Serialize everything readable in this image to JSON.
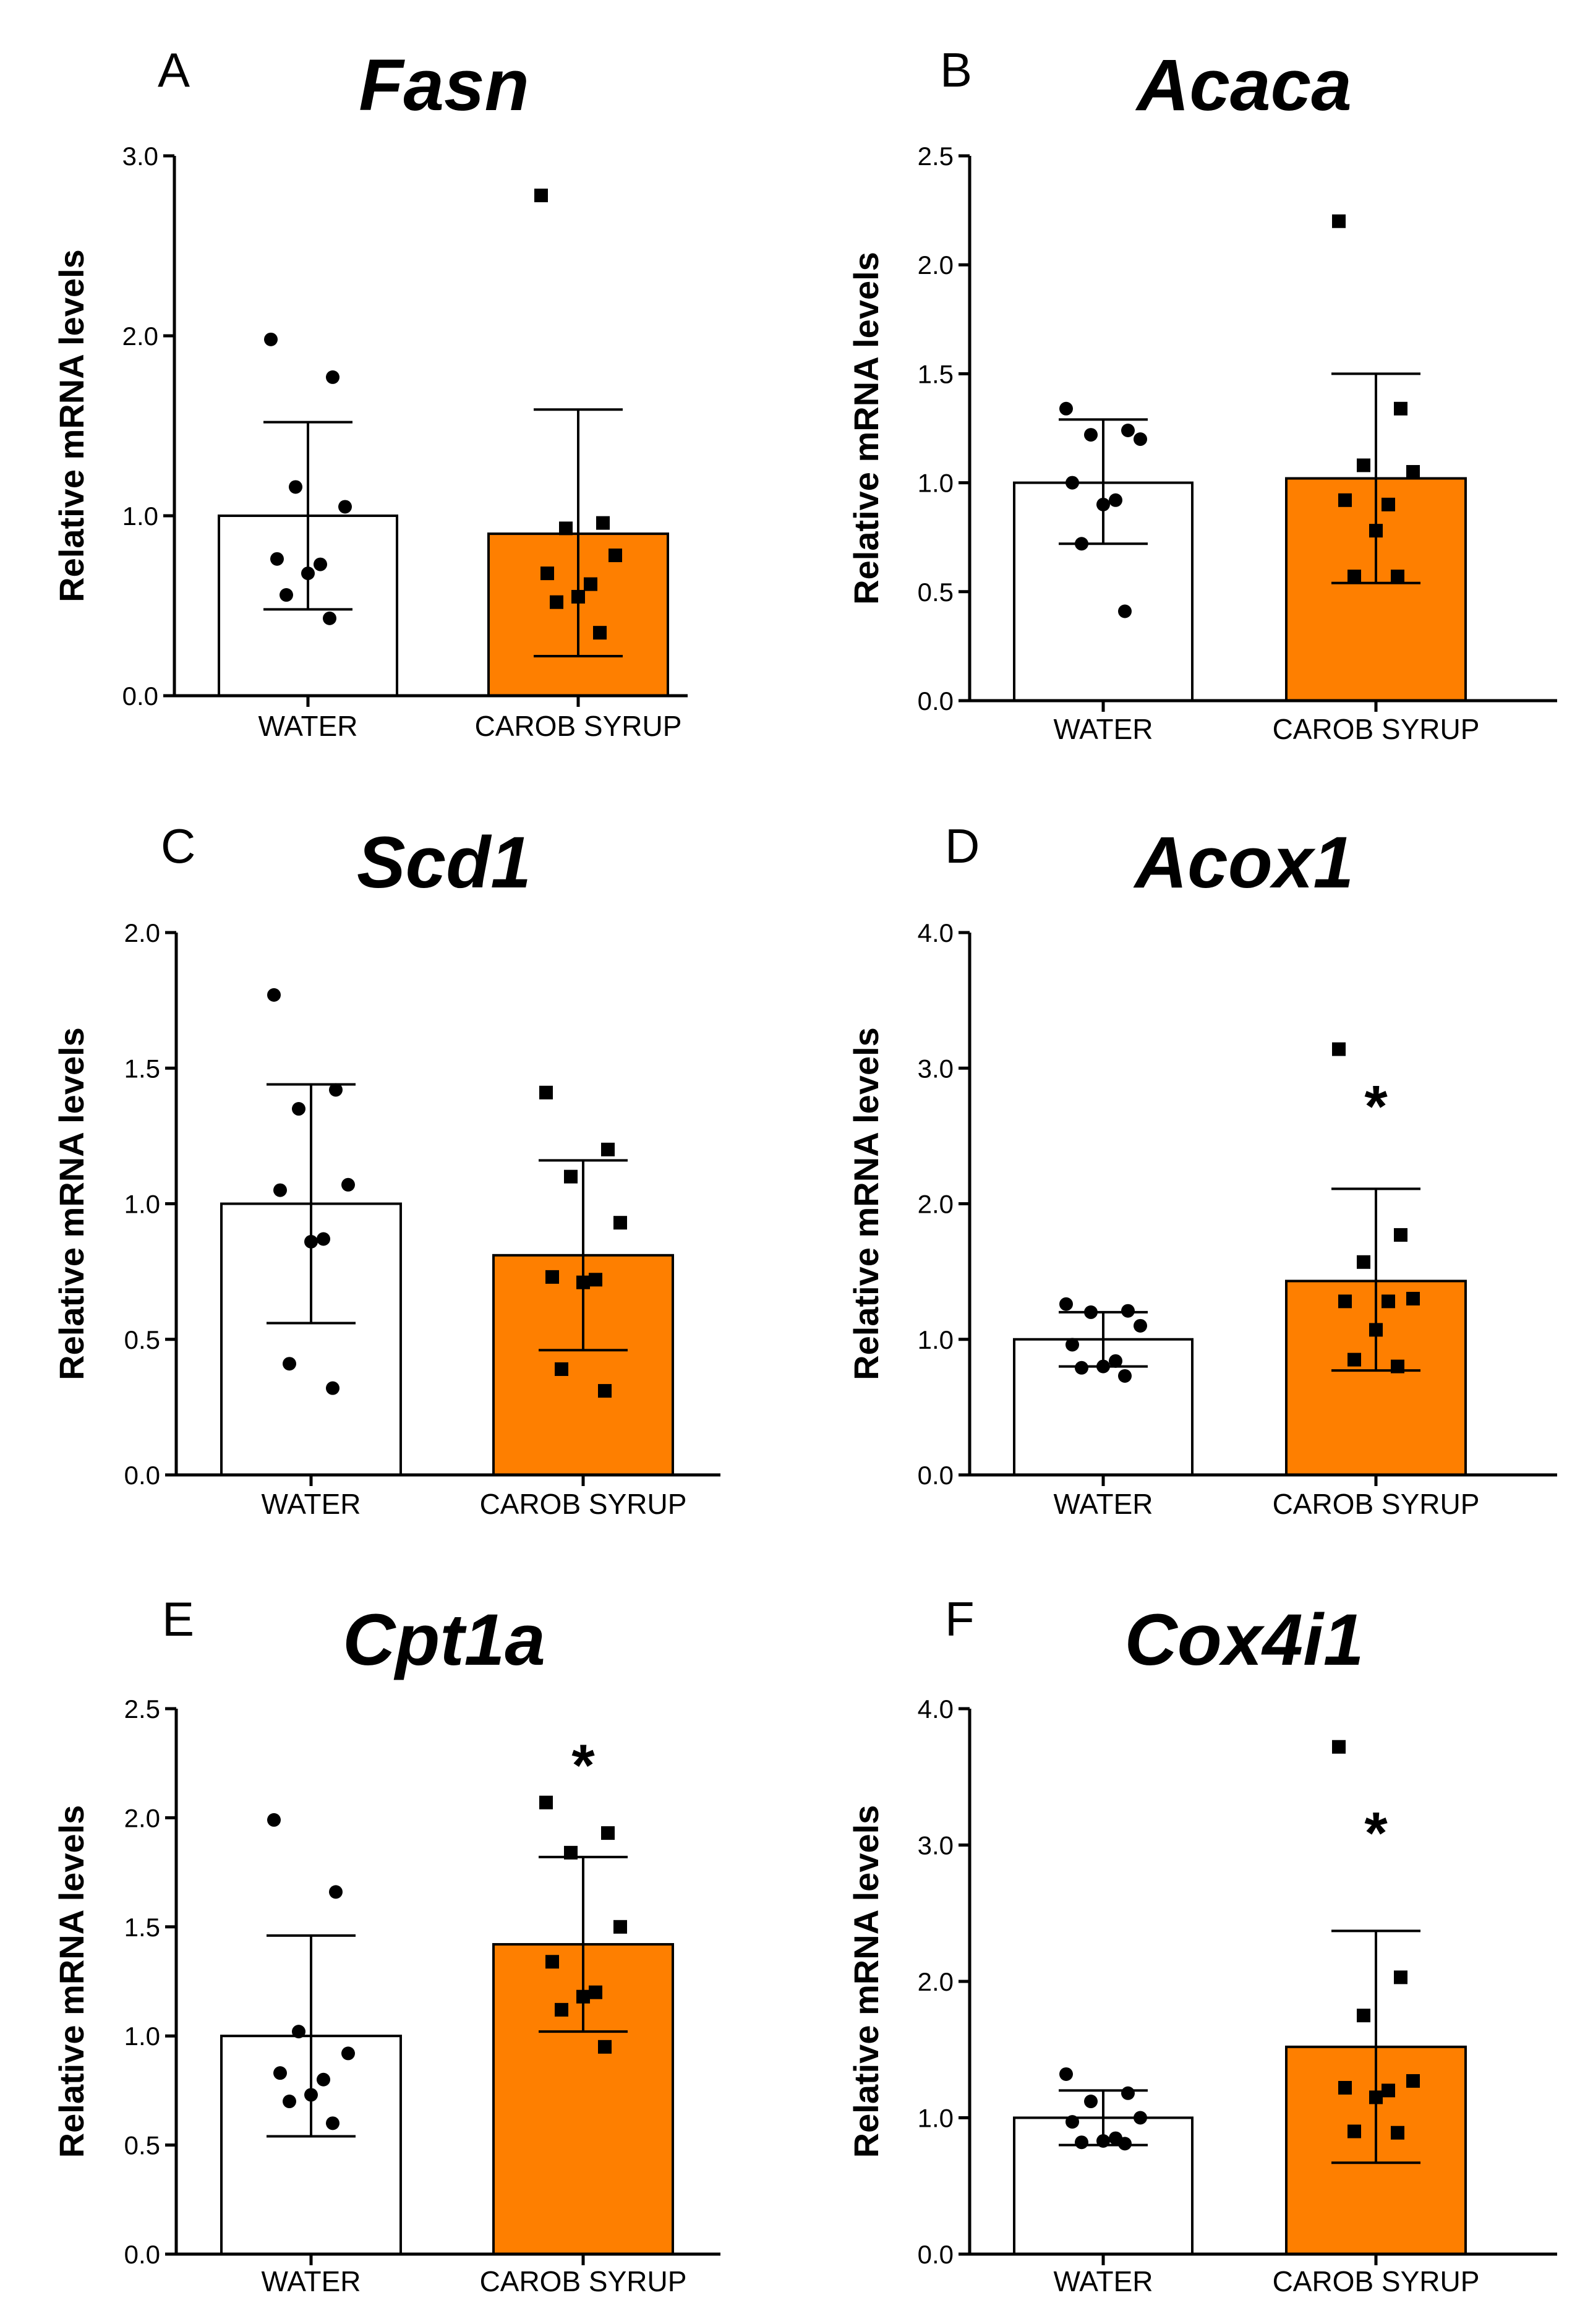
{
  "figure": {
    "colors": {
      "water": "#ffffff",
      "carob": "#fe7f00",
      "axis": "#000000",
      "points": "#000000"
    }
  },
  "chart_data": [
    {
      "type": "bar",
      "panel": "A",
      "title": "Fasn",
      "ylabel": "Relative mRNA levels",
      "xlabel": "",
      "categories": [
        "WATER",
        "CAROB SYRUP"
      ],
      "ylim": [
        0,
        3.0
      ],
      "yticks": [
        0.0,
        1.0,
        2.0,
        3.0
      ],
      "ytick_labels": [
        "0.0",
        "1.0",
        "2.0",
        "3.0"
      ],
      "values": [
        1.0,
        0.9
      ],
      "error_low": [
        0.48,
        0.22
      ],
      "error_high": [
        1.52,
        1.59
      ],
      "points": [
        [
          1.98,
          1.77,
          1.16,
          1.05,
          0.76,
          0.73,
          0.68,
          0.56,
          0.43
        ],
        [
          2.78,
          0.96,
          0.93,
          0.78,
          0.68,
          0.62,
          0.55,
          0.52,
          0.35
        ]
      ],
      "markers": [
        "circle",
        "square"
      ],
      "significance": [
        "",
        ""
      ]
    },
    {
      "type": "bar",
      "panel": "B",
      "title": "Acaca",
      "ylabel": "Relative mRNA levels",
      "xlabel": "",
      "categories": [
        "WATER",
        "CAROB SYRUP"
      ],
      "ylim": [
        0,
        2.5
      ],
      "yticks": [
        0.0,
        0.5,
        1.0,
        1.5,
        2.0,
        2.5
      ],
      "ytick_labels": [
        "0.0",
        "0.5",
        "1.0",
        "1.5",
        "2.0",
        "2.5"
      ],
      "values": [
        1.0,
        1.02
      ],
      "error_low": [
        0.72,
        0.54
      ],
      "error_high": [
        1.29,
        1.5
      ],
      "points": [
        [
          1.34,
          1.24,
          1.22,
          1.2,
          1.0,
          0.92,
          0.9,
          0.72,
          0.41
        ],
        [
          2.2,
          1.34,
          1.08,
          1.05,
          0.92,
          0.9,
          0.78,
          0.57,
          0.57
        ]
      ],
      "markers": [
        "circle",
        "square"
      ],
      "significance": [
        "",
        ""
      ]
    },
    {
      "type": "bar",
      "panel": "C",
      "title": "Scd1",
      "ylabel": "Relative mRNA levels",
      "xlabel": "",
      "categories": [
        "WATER",
        "CAROB SYRUP"
      ],
      "ylim": [
        0,
        2.0
      ],
      "yticks": [
        0.0,
        0.5,
        1.0,
        1.5,
        2.0
      ],
      "ytick_labels": [
        "0.0",
        "0.5",
        "1.0",
        "1.5",
        "2.0"
      ],
      "values": [
        1.0,
        0.81
      ],
      "error_low": [
        0.56,
        0.46
      ],
      "error_high": [
        1.44,
        1.16
      ],
      "points": [
        [
          1.77,
          1.42,
          1.35,
          1.07,
          1.05,
          0.87,
          0.86,
          0.41,
          0.32
        ],
        [
          1.41,
          1.2,
          1.1,
          0.93,
          0.73,
          0.72,
          0.71,
          0.39,
          0.31
        ]
      ],
      "markers": [
        "circle",
        "square"
      ],
      "significance": [
        "",
        ""
      ]
    },
    {
      "type": "bar",
      "panel": "D",
      "title": "Acox1",
      "ylabel": "Relative mRNA levels",
      "xlabel": "",
      "categories": [
        "WATER",
        "CAROB SYRUP"
      ],
      "ylim": [
        0,
        4.0
      ],
      "yticks": [
        0.0,
        1.0,
        2.0,
        3.0,
        4.0
      ],
      "ytick_labels": [
        "0.0",
        "1.0",
        "2.0",
        "3.0",
        "4.0"
      ],
      "values": [
        1.0,
        1.43
      ],
      "error_low": [
        0.8,
        0.77
      ],
      "error_high": [
        1.2,
        2.11
      ],
      "points": [
        [
          1.26,
          1.21,
          1.2,
          1.1,
          0.96,
          0.84,
          0.8,
          0.79,
          0.73
        ],
        [
          3.14,
          1.77,
          1.57,
          1.3,
          1.28,
          1.28,
          1.07,
          0.85,
          0.8
        ]
      ],
      "markers": [
        "circle",
        "square"
      ],
      "significance": [
        "",
        "*"
      ],
      "significance_value": [
        null,
        2.75
      ]
    },
    {
      "type": "bar",
      "panel": "E",
      "title": "Cpt1a",
      "ylabel": "Relative mRNA levels",
      "xlabel": "",
      "categories": [
        "WATER",
        "CAROB SYRUP"
      ],
      "ylim": [
        0,
        2.5
      ],
      "yticks": [
        0.0,
        0.5,
        1.0,
        1.5,
        2.0,
        2.5
      ],
      "ytick_labels": [
        "0.0",
        "0.5",
        "1.0",
        "1.5",
        "2.0",
        "2.5"
      ],
      "values": [
        1.0,
        1.42
      ],
      "error_low": [
        0.54,
        1.02
      ],
      "error_high": [
        1.46,
        1.82
      ],
      "points": [
        [
          1.99,
          1.66,
          1.02,
          0.92,
          0.83,
          0.8,
          0.73,
          0.7,
          0.6
        ],
        [
          2.07,
          1.93,
          1.84,
          1.5,
          1.34,
          1.2,
          1.18,
          1.12,
          0.95
        ]
      ],
      "markers": [
        "circle",
        "square"
      ],
      "significance": [
        "",
        "*"
      ],
      "significance_value": [
        null,
        2.26
      ]
    },
    {
      "type": "bar",
      "panel": "F",
      "title": "Cox4i1",
      "ylabel": "Relative mRNA levels",
      "xlabel": "",
      "categories": [
        "WATER",
        "CAROB SYRUP"
      ],
      "ylim": [
        0,
        4.0
      ],
      "yticks": [
        0.0,
        1.0,
        2.0,
        3.0,
        4.0
      ],
      "ytick_labels": [
        "0.0",
        "1.0",
        "2.0",
        "3.0",
        "4.0"
      ],
      "values": [
        1.0,
        1.52
      ],
      "error_low": [
        0.8,
        0.67
      ],
      "error_high": [
        1.2,
        2.37
      ],
      "points": [
        [
          1.32,
          1.18,
          1.12,
          1.0,
          0.97,
          0.85,
          0.83,
          0.82,
          0.81
        ],
        [
          3.72,
          2.03,
          1.75,
          1.27,
          1.22,
          1.2,
          1.15,
          0.9,
          0.89
        ]
      ],
      "markers": [
        "circle",
        "square"
      ],
      "significance": [
        "",
        "*"
      ],
      "significance_value": [
        null,
        3.12
      ]
    }
  ]
}
